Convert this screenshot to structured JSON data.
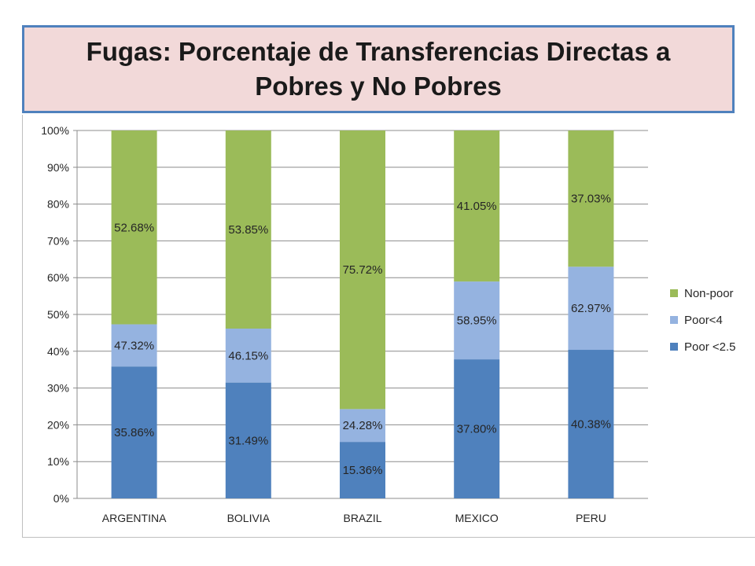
{
  "header": {
    "title": "Fugas: Porcentaje de Transferencias Directas a Pobres y No Pobres"
  },
  "chart_data": {
    "type": "bar",
    "stacked": true,
    "categories": [
      "ARGENTINA",
      "BOLIVIA",
      "BRAZIL",
      "MEXICO",
      "PERU"
    ],
    "ylim": [
      0,
      100
    ],
    "yticks": [
      0,
      10,
      20,
      30,
      40,
      50,
      60,
      70,
      80,
      90,
      100
    ],
    "ytick_format": "%",
    "grid": true,
    "legend_position": "right",
    "series": [
      {
        "name": "Poor <2.5",
        "color": "#4f81bd",
        "values": [
          35.86,
          31.49,
          15.36,
          37.8,
          40.38
        ],
        "labels": [
          "35.86%",
          "31.49%",
          "15.36%",
          "37.80%",
          "40.38%"
        ]
      },
      {
        "name": "Poor<4",
        "color": "#95b3e0",
        "values": [
          11.46,
          14.66,
          8.92,
          21.15,
          22.59
        ],
        "labels": [
          "47.32%",
          "46.15%",
          "24.28%",
          "58.95%",
          "62.97%"
        ]
      },
      {
        "name": "Non-poor",
        "color": "#9bbb59",
        "values": [
          52.68,
          53.85,
          75.72,
          41.05,
          37.03
        ],
        "labels": [
          "52.68%",
          "53.85%",
          "75.72%",
          "41.05%",
          "37.03%"
        ]
      }
    ],
    "legend_order": [
      "Non-poor",
      "Poor<4",
      "Poor <2.5"
    ]
  }
}
